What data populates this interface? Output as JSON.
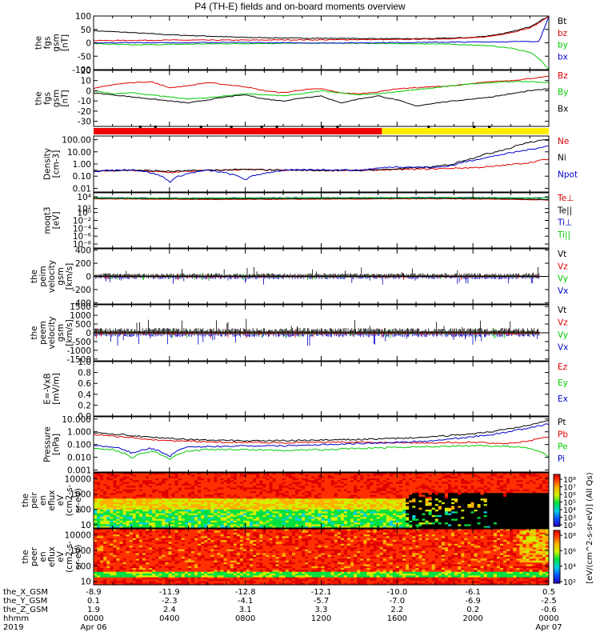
{
  "title": "P4 (TH-E) fields and on-board moments overview",
  "chart_data": [
    {
      "id": "fgs_gsm",
      "type": "line",
      "ylabel": [
        "the",
        "fgs",
        "gsm",
        "[nT]"
      ],
      "yticks": [
        "100",
        "50",
        "0",
        "-50",
        "-100"
      ],
      "ylim": [
        -100,
        100
      ],
      "x": [
        0,
        2,
        4,
        6,
        8,
        10,
        12,
        14,
        16,
        18,
        20,
        21,
        22,
        23,
        23.5,
        24
      ],
      "series": [
        {
          "name": "Bt",
          "color": "#000000",
          "values": [
            45,
            38,
            30,
            25,
            20,
            18,
            17,
            16,
            15,
            16,
            20,
            28,
            40,
            60,
            80,
            100
          ]
        },
        {
          "name": "bz",
          "color": "#dd0000",
          "values": [
            8,
            9,
            10,
            10,
            10,
            11,
            11,
            12,
            12,
            14,
            18,
            25,
            38,
            55,
            75,
            100
          ]
        },
        {
          "name": "by",
          "color": "#00cc00",
          "values": [
            -3,
            -8,
            -6,
            -4,
            -3,
            -2,
            -1,
            -2,
            -3,
            -4,
            -8,
            -12,
            -20,
            -35,
            -60,
            -100
          ]
        },
        {
          "name": "bx",
          "color": "#0000cc",
          "values": [
            -1,
            1,
            0,
            1,
            1,
            0,
            -1,
            0,
            1,
            2,
            3,
            4,
            4,
            5,
            6,
            100
          ]
        }
      ]
    },
    {
      "id": "fgs_gse",
      "type": "line",
      "ylabel": [
        "the",
        "fgs",
        "gsm",
        "[nT]"
      ],
      "yticks": [
        "20",
        "10",
        "0",
        "-10",
        "-20",
        "-30"
      ],
      "ylim": [
        -35,
        20
      ],
      "x": [
        0,
        1,
        2,
        3,
        4,
        5,
        6,
        7,
        8,
        9,
        10,
        11,
        12,
        13,
        14,
        15,
        16,
        17,
        18,
        19,
        20,
        21,
        22,
        23,
        24
      ],
      "series": [
        {
          "name": "Bz",
          "color": "#dd0000",
          "values": [
            2,
            6,
            8,
            9,
            3,
            5,
            8,
            6,
            4,
            0,
            -2,
            1,
            2,
            -2,
            -3,
            -1,
            2,
            3,
            4,
            5,
            7,
            9,
            10,
            12,
            14
          ]
        },
        {
          "name": "By",
          "color": "#00cc00",
          "values": [
            0,
            -3,
            -2,
            -4,
            -6,
            -8,
            -7,
            -5,
            -3,
            -4,
            -5,
            -3,
            0,
            -2,
            -4,
            -3,
            -1,
            1,
            3,
            5,
            7,
            8,
            9,
            9,
            8
          ]
        },
        {
          "name": "Bx",
          "color": "#000000",
          "values": [
            -2,
            -4,
            -6,
            -8,
            -10,
            -12,
            -9,
            -6,
            -4,
            -8,
            -10,
            -7,
            -5,
            -12,
            -8,
            -5,
            -9,
            -15,
            -12,
            -10,
            -8,
            -6,
            -3,
            0,
            2
          ]
        }
      ]
    },
    {
      "id": "mode_bar",
      "type": "bar",
      "segments": [
        {
          "from": 0,
          "to": 15.2,
          "color": "#ee0000"
        },
        {
          "from": 15.2,
          "to": 24,
          "color": "#ffee00"
        }
      ]
    },
    {
      "id": "density",
      "type": "line",
      "ylabel": [
        "Density",
        "[cm-3]"
      ],
      "yticks": [
        "100.00",
        "10.00",
        "1.00",
        "0.10",
        "0.01"
      ],
      "ylim": [
        0.005,
        200
      ],
      "log": true,
      "x": [
        0,
        2,
        4,
        6,
        8,
        10,
        12,
        14,
        16,
        18,
        19,
        20,
        21,
        22,
        23,
        24
      ],
      "series": [
        {
          "name": "Ne",
          "color": "#dd0000",
          "values": [
            0.25,
            0.3,
            0.2,
            0.3,
            0.35,
            0.3,
            0.3,
            0.3,
            0.35,
            0.4,
            0.45,
            0.5,
            0.6,
            0.9,
            1.3,
            2.5
          ]
        },
        {
          "name": "Ni",
          "color": "#000000",
          "values": [
            0.28,
            0.32,
            0.25,
            0.3,
            0.35,
            0.32,
            0.3,
            0.3,
            0.38,
            0.6,
            1.0,
            3,
            8,
            20,
            60,
            100
          ]
        },
        {
          "name": "Npot",
          "color": "#0000cc",
          "values": [
            0.25,
            0.35,
            0.03,
            0.3,
            0.05,
            0.3,
            0.35,
            0.3,
            0.6,
            0.5,
            0.8,
            2,
            4,
            8,
            15,
            30
          ]
        }
      ]
    },
    {
      "id": "temperature",
      "type": "line",
      "ylabel": [
        "moqt3",
        "[eV]"
      ],
      "yticks": [
        "10⁴",
        "10²",
        "10⁰",
        "10⁻²",
        "10⁻⁴",
        "10⁻⁶",
        "10⁻⁸"
      ],
      "ylim": [
        1e-09,
        100000.0
      ],
      "log": true,
      "x": [
        0,
        3,
        6,
        9,
        12,
        15,
        18,
        21,
        24
      ],
      "series": [
        {
          "name": "Te⊥",
          "color": "#dd0000",
          "values": [
            3000,
            2500,
            2000,
            2200,
            2500,
            2800,
            3000,
            2500,
            1500
          ]
        },
        {
          "name": "Te||",
          "color": "#000000",
          "values": [
            4000,
            3500,
            3000,
            3200,
            3500,
            3800,
            4000,
            3500,
            2000
          ]
        },
        {
          "name": "Ti⊥",
          "color": "#0000cc",
          "values": [
            6000,
            5000,
            5000,
            5500,
            6000,
            6000,
            7000,
            6000,
            5000
          ]
        },
        {
          "name": "Ti||",
          "color": "#00cc00",
          "values": [
            5000,
            4500,
            4500,
            5000,
            5500,
            5500,
            6000,
            5500,
            4500
          ]
        }
      ]
    },
    {
      "id": "peim_velocity",
      "type": "line",
      "ylabel": [
        "the",
        "peim",
        "velocity",
        "gsm",
        "[km/s]"
      ],
      "yticks": [
        "400",
        "200",
        "0",
        "-200",
        "-400"
      ],
      "ylim": [
        -420,
        420
      ],
      "series_names": [
        {
          "name": "Vt",
          "color": "#000000"
        },
        {
          "name": "Vz",
          "color": "#dd0000"
        },
        {
          "name": "Vy",
          "color": "#00cc00"
        },
        {
          "name": "Vx",
          "color": "#0000cc"
        }
      ]
    },
    {
      "id": "peem_velocity",
      "type": "line",
      "ylabel": [
        "the",
        "peem",
        "velocity",
        "gsm",
        "[km/s]"
      ],
      "yticks": [
        "1500",
        "1000",
        "500",
        "0",
        "-500",
        "-1000",
        "-1500"
      ],
      "ylim": [
        -1600,
        1600
      ],
      "series_names": [
        {
          "name": "Vt",
          "color": "#000000"
        },
        {
          "name": "Vz",
          "color": "#dd0000"
        },
        {
          "name": "Vy",
          "color": "#00cc00"
        },
        {
          "name": "Vx",
          "color": "#0000cc"
        }
      ]
    },
    {
      "id": "efield",
      "type": "line",
      "ylabel": [
        "E=-VxB",
        "[mV/m]"
      ],
      "yticks": [
        "1.0",
        "0.8",
        "0.6",
        "0.4",
        "0.2",
        "0.0"
      ],
      "ylim": [
        0,
        1
      ],
      "series_names": [
        {
          "name": "Ez",
          "color": "#dd0000"
        },
        {
          "name": "Ey",
          "color": "#00cc00"
        },
        {
          "name": "Ex",
          "color": "#0000cc"
        }
      ]
    },
    {
      "id": "pressure",
      "type": "line",
      "ylabel": [
        "Pressure",
        "[nPa]"
      ],
      "yticks": [
        "10.000",
        "1.000",
        "0.100",
        "0.010",
        "0.001"
      ],
      "ylim": [
        0.0007,
        15
      ],
      "log": true,
      "x": [
        0,
        1,
        2,
        3,
        4,
        5,
        6,
        8,
        10,
        12,
        14,
        16,
        18,
        20,
        21,
        22,
        23,
        24
      ],
      "series": [
        {
          "name": "Pt",
          "color": "#000000",
          "values": [
            0.9,
            0.7,
            0.5,
            0.35,
            0.3,
            0.25,
            0.22,
            0.2,
            0.2,
            0.22,
            0.25,
            0.3,
            0.4,
            0.7,
            1.0,
            1.8,
            3.5,
            8
          ]
        },
        {
          "name": "Pb",
          "color": "#dd0000",
          "values": [
            0.6,
            0.45,
            0.35,
            0.25,
            0.2,
            0.18,
            0.16,
            0.15,
            0.14,
            0.15,
            0.15,
            0.14,
            0.14,
            0.15,
            0.13,
            0.12,
            0.2,
            0.4
          ]
        },
        {
          "name": "Pe",
          "color": "#00cc00",
          "values": [
            0.05,
            0.04,
            0.008,
            0.03,
            0.006,
            0.03,
            0.04,
            0.04,
            0.035,
            0.04,
            0.05,
            0.06,
            0.07,
            0.08,
            0.08,
            0.07,
            0.05,
            0.01
          ]
        },
        {
          "name": "Pi",
          "color": "#0000cc",
          "values": [
            0.08,
            0.07,
            0.02,
            0.05,
            0.01,
            0.06,
            0.07,
            0.08,
            0.08,
            0.1,
            0.12,
            0.15,
            0.2,
            0.4,
            0.6,
            1.0,
            2.0,
            4.0
          ]
        }
      ]
    },
    {
      "id": "peir_spec",
      "type": "heatmap",
      "ylabel": [
        "the",
        "peir",
        "en",
        "eflux",
        "eV",
        "(cm2-s-",
        "sr-eV)"
      ],
      "yticks": [
        "10000",
        "1000",
        "100",
        "10"
      ],
      "ylim": [
        6,
        25000
      ],
      "log": true
    },
    {
      "id": "peer_spec",
      "type": "heatmap",
      "ylabel": [
        "the",
        "peer",
        "en",
        "eflux",
        "eV",
        "(cm2-s-",
        "sr-eV)"
      ],
      "yticks": [
        "10000",
        "1000",
        "100",
        "10"
      ],
      "ylim": [
        6,
        25000
      ],
      "log": true
    }
  ],
  "legend_labels": {
    "fgs_gsm": [
      "Bt",
      "bz",
      "by",
      "bx"
    ],
    "fgs_gse": [
      "Bz",
      "By",
      "Bx"
    ],
    "density": [
      "Ne",
      "Ni",
      "Npot"
    ],
    "temperature": [
      "Te⊥",
      "Te||",
      "Ti⊥",
      "Ti||"
    ],
    "peim": [
      "Vt",
      "Vz",
      "Vy",
      "Vx"
    ],
    "peem": [
      "Vt",
      "Vz",
      "Vy",
      "Vx"
    ],
    "efield": [
      "Ez",
      "Ey",
      "Ex"
    ],
    "pressure": [
      "Pt",
      "Pb",
      "Pe",
      "Pi"
    ]
  },
  "colorbar": {
    "label": "[eV/(cm^2-s-sr-eV)] (All Qs)",
    "ticks_top": [
      "10⁸",
      "10⁷",
      "10⁶",
      "10⁵",
      "10⁴",
      "10³",
      "10²"
    ],
    "ticks_bottom": [
      "10⁸",
      "10⁶",
      "10⁴",
      "10²"
    ]
  },
  "orbit_axis": {
    "row_labels": [
      "the_X_GSM",
      "the_Y_GSM",
      "the_Z_GSM",
      "hhmm",
      "2019"
    ],
    "columns": [
      [
        "-8.9",
        "0.1",
        "1.9",
        "0000",
        "Apr 06"
      ],
      [
        "-11.9",
        "-2.3",
        "2.4",
        "0400",
        ""
      ],
      [
        "-12.8",
        "-4.1",
        "3.1",
        "0800",
        ""
      ],
      [
        "-12.1",
        "-5.7",
        "3.3",
        "1200",
        ""
      ],
      [
        "-10.0",
        "-7.0",
        "2.2",
        "1600",
        ""
      ],
      [
        "-6.1",
        "-6.9",
        "0.2",
        "2000",
        ""
      ],
      [
        "0.5",
        "-2.5",
        "-0.6",
        "0000",
        "Apr 07"
      ]
    ]
  }
}
